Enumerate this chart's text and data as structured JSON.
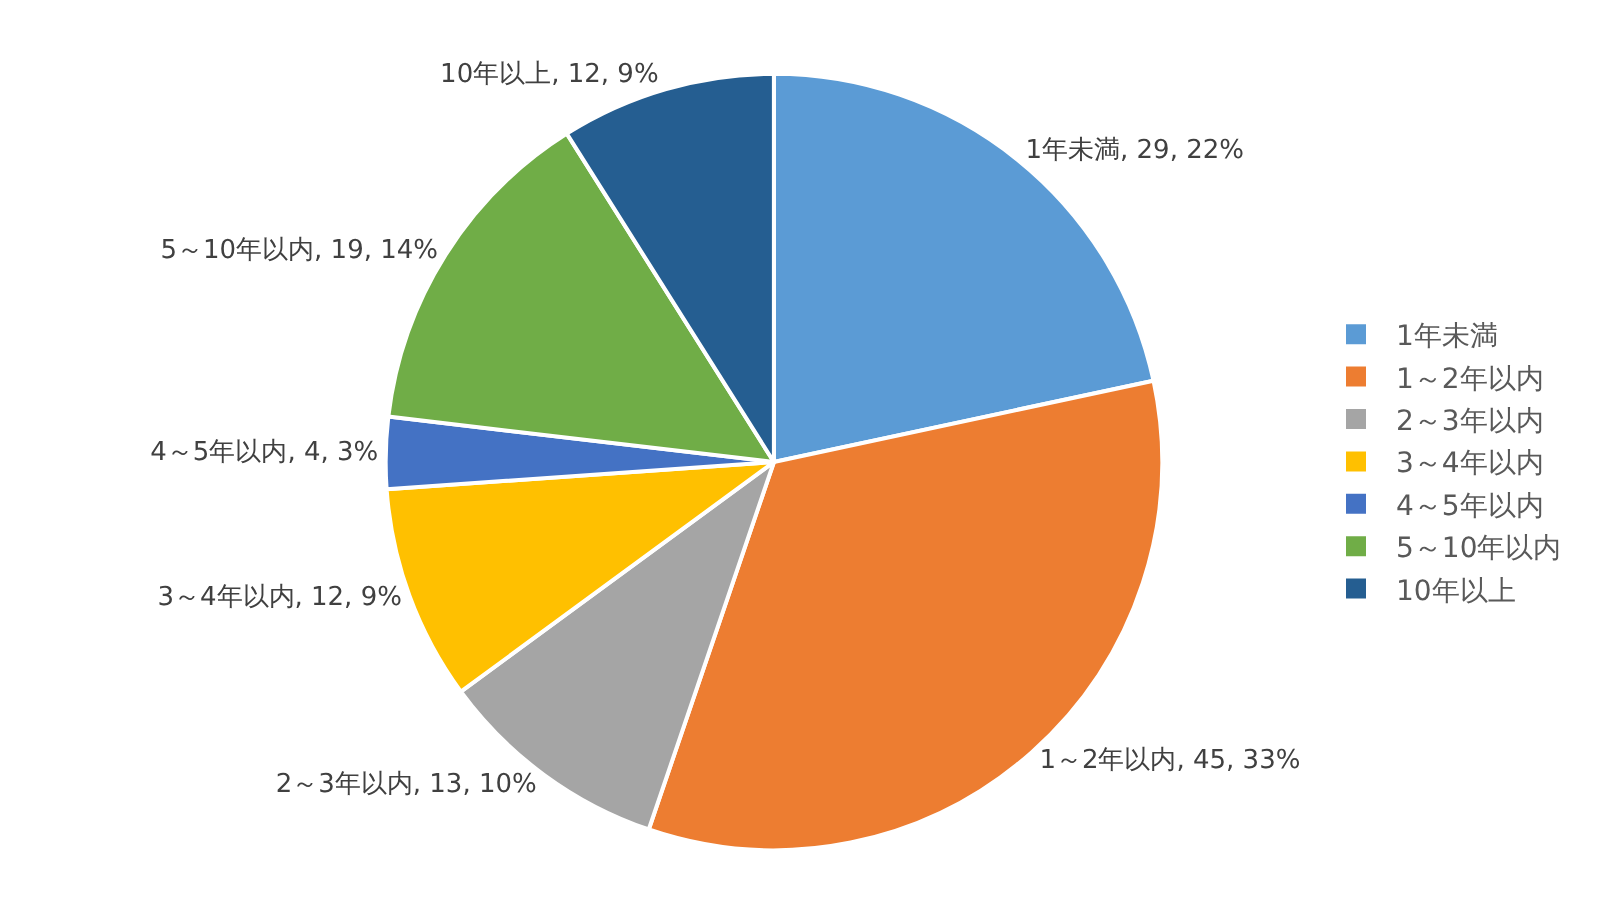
{
  "chart_data": {
    "type": "pie",
    "categories": [
      "1年未満",
      "1～2年以内",
      "2～3年以内",
      "3～4年以内",
      "4～5年以内",
      "5～10年以内",
      "10年以上"
    ],
    "values": [
      29,
      45,
      13,
      12,
      4,
      19,
      12
    ],
    "colors": [
      "#5b9bd5",
      "#ed7d31",
      "#a5a5a5",
      "#ffc000",
      "#4472c4",
      "#70ad47",
      "#255e91"
    ],
    "value_labels": [
      "1年未満, 29, 22%",
      "1～2年以内, 45, 33%",
      "2～3年以内, 13, 10%",
      "3～4年以内, 12, 9%",
      "4～5年以内, 4, 3%",
      "5～10年以内, 19, 14%",
      "10年以上, 12, 9%"
    ],
    "legend": "right"
  }
}
